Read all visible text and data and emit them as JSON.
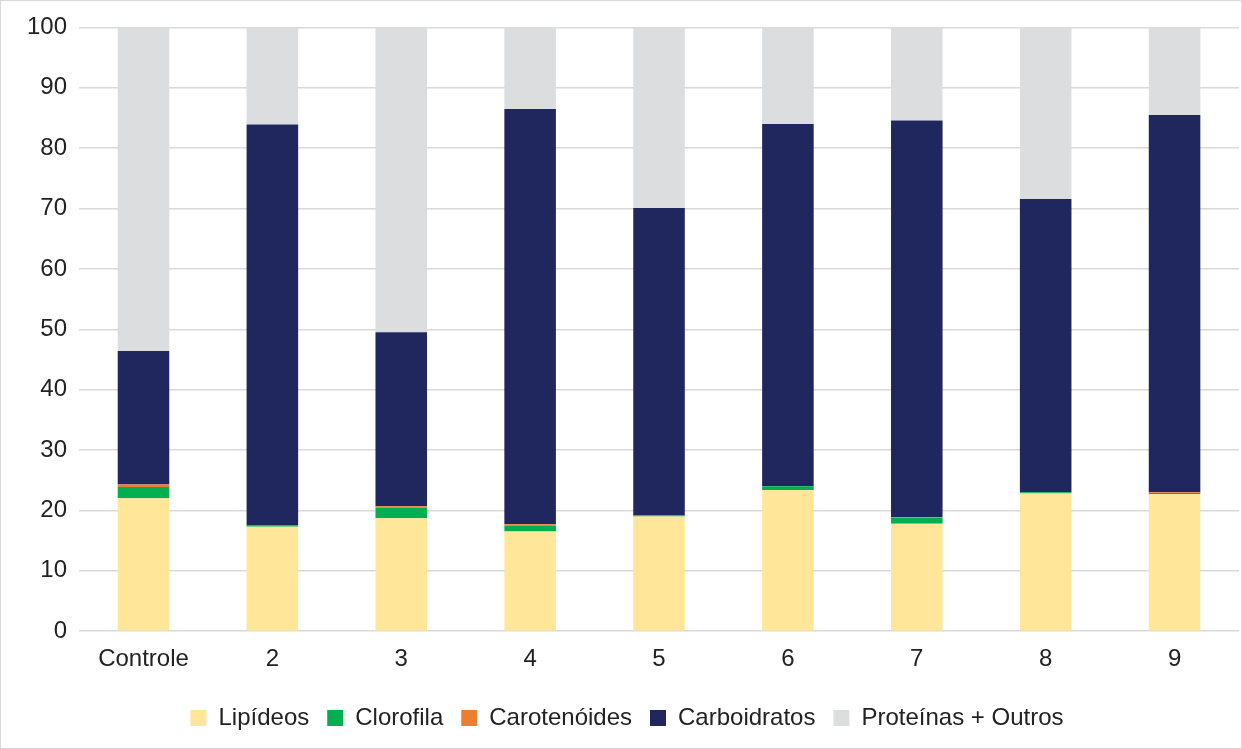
{
  "chart_data": {
    "type": "bar",
    "stacked": true,
    "categories": [
      "Controle",
      "2",
      "3",
      "4",
      "5",
      "6",
      "7",
      "8",
      "9"
    ],
    "series": [
      {
        "name": "Lipídeos",
        "color": "#ffe699",
        "values": [
          22.0,
          17.3,
          18.7,
          16.5,
          19.0,
          23.4,
          17.8,
          22.8,
          22.7
        ]
      },
      {
        "name": "Clorofila",
        "color": "#00b050",
        "values": [
          1.9,
          0.2,
          1.8,
          1.0,
          0.2,
          0.6,
          1.0,
          0.2,
          0.2
        ]
      },
      {
        "name": "Carotenóides",
        "color": "#ed7d31",
        "values": [
          0.4,
          null,
          0.2,
          0.2,
          null,
          null,
          0.1,
          null,
          0.1
        ]
      },
      {
        "name": "Carboidratos",
        "color": "#1f275e",
        "values": [
          22.1,
          66.4,
          28.8,
          68.8,
          50.9,
          60.0,
          65.7,
          48.6,
          62.5
        ]
      },
      {
        "name": "Proteínas + Outros",
        "color": "#dcdddf",
        "values": [
          53.6,
          16.0,
          50.5,
          13.5,
          29.8,
          15.9,
          15.4,
          28.3,
          14.5
        ]
      }
    ],
    "ylim": [
      0,
      100
    ],
    "yticks": [
      0,
      10,
      20,
      30,
      40,
      50,
      60,
      70,
      80,
      90,
      100
    ],
    "grid": "y",
    "legend": "bottom"
  }
}
